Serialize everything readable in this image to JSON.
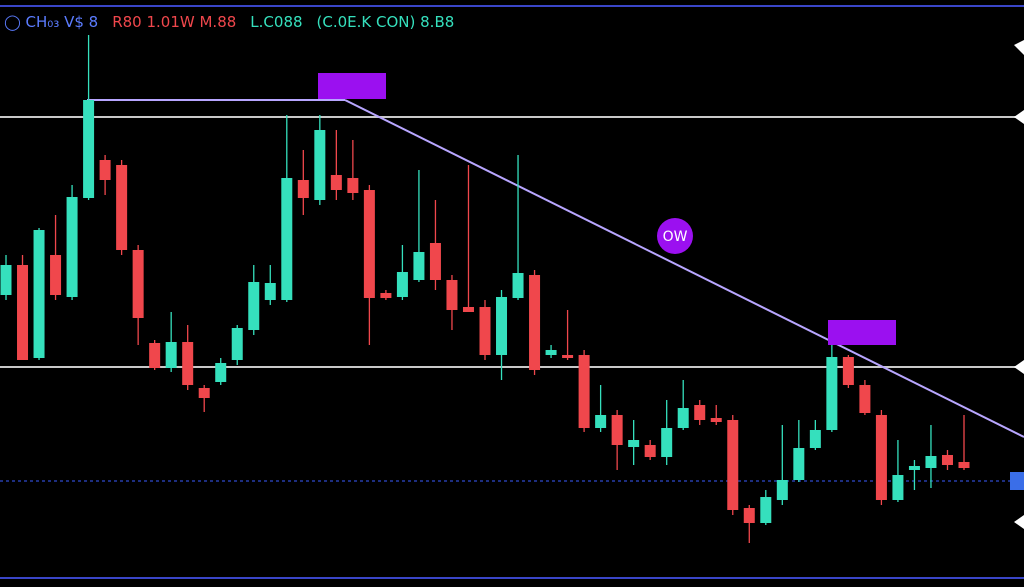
{
  "chart_data": {
    "type": "candlestick",
    "title_parts": [
      {
        "text": "◯ CH₀₃ V$ 8",
        "color": "#5b7cff"
      },
      {
        "text": "R80 1.01W M.88",
        "color": "#f0474c"
      },
      {
        "text": "L.C088",
        "color": "#35e0bd"
      },
      {
        "text": "(C.0E.K CON) 8.B8",
        "color": "#35e0bd"
      }
    ],
    "annotation": "OW",
    "ylim": [
      0,
      587
    ],
    "levels": [
      470,
      220
    ],
    "current_price": 106,
    "up_color": "#35e0bd",
    "down_color": "#f0474c",
    "categories": [
      null,
      null,
      null,
      null,
      null,
      null,
      null,
      null,
      null,
      null,
      null,
      null,
      null,
      null,
      null,
      null,
      null,
      null,
      null,
      null,
      null,
      null,
      null,
      null,
      null,
      null,
      null,
      null,
      null,
      null,
      null,
      null,
      null,
      null,
      null,
      null,
      null,
      null,
      null,
      null,
      null,
      null,
      null,
      null,
      null,
      null,
      null,
      null,
      null,
      null,
      null,
      null,
      null,
      null,
      null,
      null,
      null,
      null,
      null
    ],
    "open": [
      292,
      322,
      229,
      332,
      290,
      389,
      427,
      422,
      337,
      244,
      219,
      245,
      199,
      205,
      227,
      257,
      287,
      287,
      407,
      387,
      412,
      409,
      397,
      294,
      290,
      307,
      344,
      307,
      280,
      280,
      232,
      289,
      312,
      232,
      232,
      232,
      159,
      172,
      140,
      142,
      130,
      159,
      182,
      169,
      167,
      79,
      64,
      87,
      107,
      139,
      157,
      230,
      202,
      172,
      87,
      117,
      119,
      132,
      125
    ],
    "high": [
      332,
      332,
      359,
      372,
      402,
      552,
      432,
      427,
      342,
      247,
      275,
      262,
      202,
      229,
      262,
      322,
      322,
      472,
      437,
      472,
      457,
      447,
      402,
      297,
      342,
      417,
      387,
      312,
      422,
      287,
      297,
      432,
      317,
      242,
      277,
      237,
      202,
      177,
      167,
      147,
      187,
      207,
      187,
      182,
      172,
      82,
      97,
      162,
      167,
      167,
      247,
      232,
      207,
      177,
      147,
      127,
      162,
      137,
      172
    ],
    "low": [
      287,
      227,
      227,
      287,
      287,
      387,
      392,
      332,
      242,
      217,
      215,
      197,
      175,
      202,
      222,
      252,
      282,
      285,
      372,
      382,
      387,
      387,
      242,
      287,
      287,
      305,
      297,
      257,
      275,
      227,
      207,
      287,
      212,
      229,
      227,
      155,
      155,
      117,
      122,
      127,
      122,
      157,
      162,
      162,
      72,
      44,
      62,
      82,
      105,
      137,
      155,
      199,
      172,
      82,
      85,
      97,
      99,
      117,
      117
    ],
    "close": [
      322,
      227,
      357,
      292,
      390,
      487,
      407,
      337,
      269,
      219,
      245,
      202,
      189,
      224,
      259,
      305,
      304,
      409,
      389,
      457,
      397,
      394,
      289,
      289,
      315,
      335,
      307,
      277,
      275,
      232,
      290,
      314,
      217,
      237,
      229,
      159,
      172,
      142,
      147,
      130,
      159,
      179,
      167,
      165,
      77,
      64,
      90,
      107,
      139,
      157,
      230,
      202,
      174,
      87,
      112,
      121,
      131,
      122,
      119
    ]
  }
}
